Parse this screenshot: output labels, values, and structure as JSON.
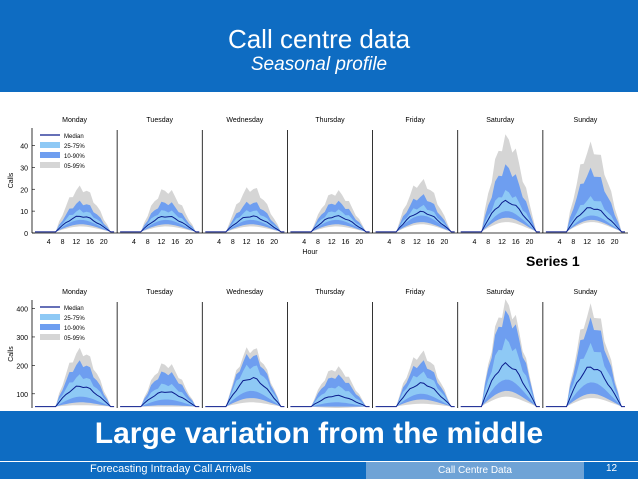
{
  "slide": {
    "title": "Call centre data",
    "subtitle": "Seasonal profile",
    "callout": "Large variation from the middle",
    "footer_left": "Forecasting Intraday Call Arrivals",
    "footer_mid": "Call Centre Data",
    "page_number": "12",
    "series_label": "Series 1"
  },
  "colors": {
    "header_bg": "#0e6cc2",
    "band_0595": "#d5d5d5",
    "band_1090": "#6e9ef0",
    "band_2575": "#8ec9f5",
    "median": "#0a1b8c"
  },
  "chart_data": [
    {
      "type": "area",
      "panels": [
        "Monday",
        "Tuesday",
        "Wednesday",
        "Thursday",
        "Friday",
        "Saturday",
        "Sunday"
      ],
      "xlabel": "Hour",
      "ylabel": "Calls",
      "x_ticks": [
        "4",
        "8",
        "12",
        "16",
        "20"
      ],
      "y_ticks": [
        "0",
        "10",
        "20",
        "30",
        "40"
      ],
      "ylim": [
        0,
        48
      ],
      "legend": [
        "Median",
        "25-75%",
        "10-90%",
        "05-95%"
      ],
      "series": [
        {
          "name": "Median",
          "peaks": [
            8,
            8,
            8,
            8,
            10,
            15,
            12
          ]
        },
        {
          "name": "25-75%",
          "peaks": [
            [
              6,
              11
            ],
            [
              6,
              11
            ],
            [
              6,
              11
            ],
            [
              6,
              11
            ],
            [
              8,
              13
            ],
            [
              10,
              20
            ],
            [
              8,
              17
            ]
          ]
        },
        {
          "name": "10-90%",
          "peaks": [
            [
              4,
              15
            ],
            [
              4,
              15
            ],
            [
              4,
              15
            ],
            [
              4,
              15
            ],
            [
              5,
              18
            ],
            [
              7,
              32
            ],
            [
              6,
              30
            ]
          ]
        },
        {
          "name": "05-95%",
          "peaks": [
            [
              3,
              22
            ],
            [
              3,
              21
            ],
            [
              3,
              22
            ],
            [
              3,
              20
            ],
            [
              4,
              25
            ],
            [
              5,
              46
            ],
            [
              5,
              42
            ]
          ]
        }
      ]
    },
    {
      "type": "area",
      "panels": [
        "Monday",
        "Tuesday",
        "Wednesday",
        "Thursday",
        "Friday",
        "Saturday",
        "Sunday"
      ],
      "ylabel": "Calls",
      "y_ticks": [
        "100",
        "200",
        "300",
        "400"
      ],
      "ylim": [
        50,
        430
      ],
      "legend": [
        "Median",
        "25-75%",
        "10-90%",
        "05-95%"
      ],
      "series": [
        {
          "name": "Median",
          "peaks": [
            130,
            110,
            160,
            95,
            140,
            210,
            200
          ]
        },
        {
          "name": "25-75%",
          "peaks": [
            [
              90,
              170
            ],
            [
              80,
              140
            ],
            [
              110,
              210
            ],
            [
              70,
              130
            ],
            [
              100,
              180
            ],
            [
              150,
              300
            ],
            [
              140,
              280
            ]
          ]
        },
        {
          "name": "10-90%",
          "peaks": [
            [
              70,
              220
            ],
            [
              60,
              185
            ],
            [
              85,
              250
            ],
            [
              55,
              170
            ],
            [
              80,
              220
            ],
            [
              110,
              400
            ],
            [
              100,
              370
            ]
          ]
        },
        {
          "name": "05-95%",
          "peaks": [
            [
              60,
              265
            ],
            [
              55,
              215
            ],
            [
              70,
              275
            ],
            [
              50,
              200
            ],
            [
              65,
              255
            ],
            [
              90,
              440
            ],
            [
              85,
              420
            ]
          ]
        }
      ]
    }
  ]
}
